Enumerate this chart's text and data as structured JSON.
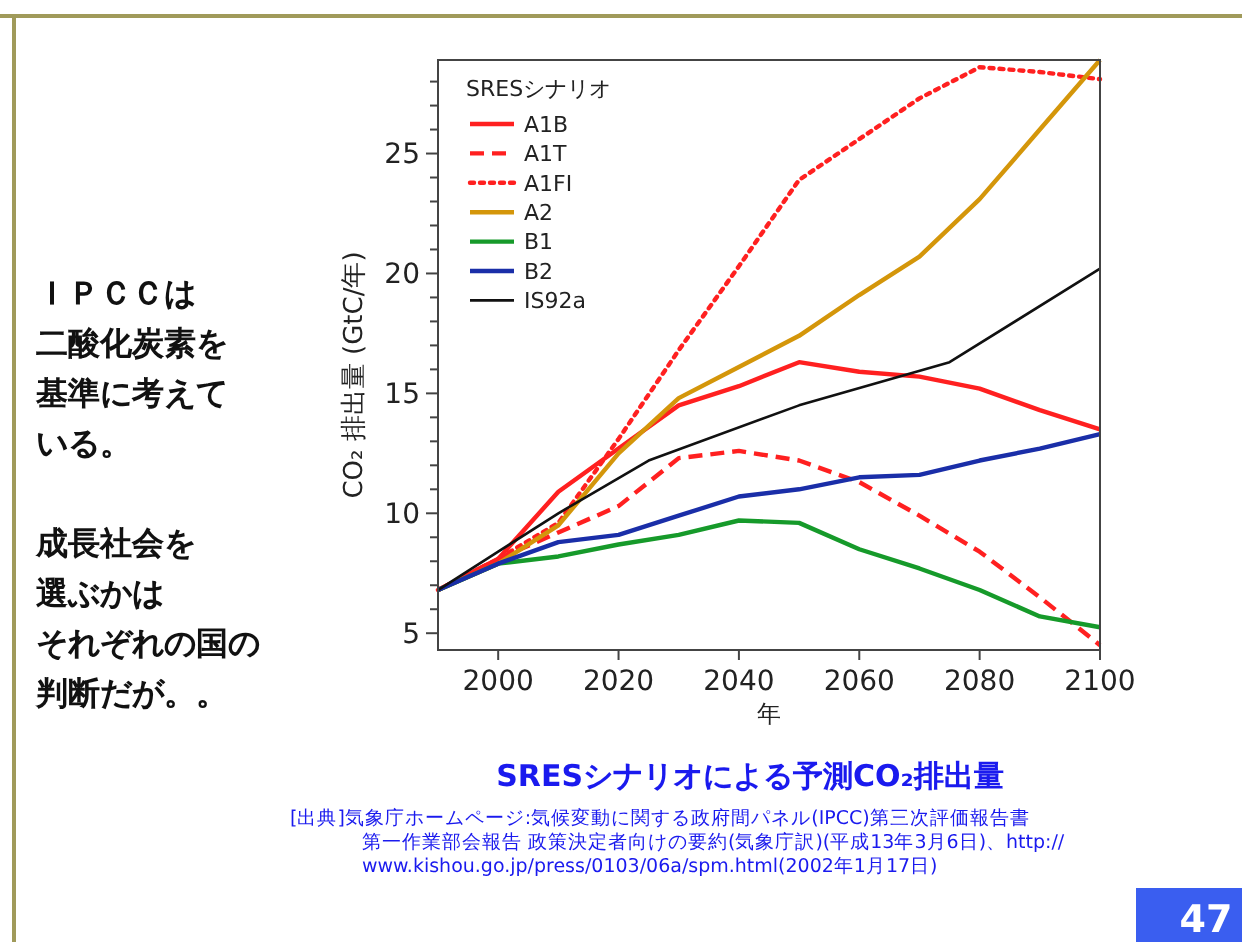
{
  "chart_data": {
    "type": "line",
    "title": "SRESシナリオによる予測CO₂排出量",
    "xlabel": "年",
    "ylabel": "CO₂ 排出量 (GtC/年)",
    "legend_title": "SRESシナリオ",
    "legend": "top left",
    "grid": false,
    "annotations": [
      "ＩＰＣＣは",
      "二酸化炭素を",
      "基準に考えて",
      "いる。",
      "成長社会を",
      "選ぶかは",
      "それぞれの国の",
      "判断だが。。",
      "[出典]気象庁ホームページ:気候変動に関する政府間パネル(IPCC)第三次評価報告書",
      "第一作業部会報告 政策決定者向けの要約(気象庁訳)(平成13年3月6日)、http://",
      "www.kishou.go.jp/press/0103/06a/spm.html(2002年1月17日)",
      "47"
    ],
    "xlim": [
      1990,
      2100
    ],
    "xticks": [
      2000,
      2020,
      2040,
      2060,
      2080,
      2100
    ],
    "ylim": [
      4.3,
      28.9
    ],
    "yticks": [
      5,
      {
        "value": 6,
        "label": null
      },
      {
        "value": 7,
        "label": null
      },
      {
        "value": 8,
        "label": null
      },
      {
        "value": 9,
        "label": null
      },
      10,
      {
        "value": 11,
        "label": null
      },
      {
        "value": 12,
        "label": null
      },
      {
        "value": 13,
        "label": null
      },
      {
        "value": 14,
        "label": null
      },
      15,
      {
        "value": 16,
        "label": null
      },
      {
        "value": 17,
        "label": null
      },
      {
        "value": 18,
        "label": null
      },
      {
        "value": 19,
        "label": null
      },
      20,
      {
        "value": 21,
        "label": null
      },
      {
        "value": 22,
        "label": null
      },
      {
        "value": 23,
        "label": null
      },
      {
        "value": 24,
        "label": null
      },
      25,
      {
        "value": 26,
        "label": null
      },
      {
        "value": 27,
        "label": null
      },
      {
        "value": 28,
        "label": null
      }
    ],
    "x": [
      1990,
      2000,
      2010,
      2020,
      2030,
      2040,
      2050,
      2060,
      2070,
      2080,
      2090,
      2100
    ],
    "series": [
      {
        "name": "A1B",
        "color": "#ff2020",
        "line_style": "solid",
        "values": [
          6.8,
          8.1,
          10.9,
          12.7,
          14.5,
          15.3,
          16.3,
          15.9,
          15.7,
          15.2,
          14.3,
          13.5
        ]
      },
      {
        "name": "A1T",
        "color": "#ff2020",
        "line_style": "dashed",
        "values": [
          6.8,
          8.1,
          9.2,
          10.3,
          12.3,
          12.6,
          12.2,
          11.3,
          9.9,
          8.4,
          6.5,
          4.5
        ]
      },
      {
        "name": "A1FI",
        "color": "#ff2020",
        "line_style": "dotted",
        "values": [
          6.8,
          8.1,
          9.6,
          13.1,
          16.8,
          20.3,
          23.9,
          25.6,
          27.3,
          28.6,
          28.4,
          28.1
        ]
      },
      {
        "name": "A2",
        "color": "#d4960a",
        "line_style": "solid",
        "values": [
          6.8,
          7.9,
          9.5,
          12.5,
          14.8,
          16.1,
          17.4,
          19.1,
          20.7,
          23.1,
          26.0,
          28.9
        ]
      },
      {
        "name": "B1",
        "color": "#169a2a",
        "line_style": "solid",
        "values": [
          6.8,
          7.9,
          8.2,
          8.7,
          9.1,
          9.7,
          9.6,
          8.5,
          7.7,
          6.8,
          5.7,
          5.25
        ]
      },
      {
        "name": "B2",
        "color": "#1a2ea8",
        "line_style": "solid",
        "values": [
          6.8,
          7.9,
          8.8,
          9.1,
          9.9,
          10.7,
          11.0,
          11.5,
          11.6,
          12.2,
          12.7,
          13.3
        ]
      },
      {
        "name": "IS92a",
        "color": "#111111",
        "line_style": "solid",
        "x": [
          1990,
          2000,
          2010,
          2025,
          2050,
          2075,
          2100
        ],
        "values": [
          6.8,
          8.4,
          10.0,
          12.2,
          14.5,
          16.3,
          20.2
        ]
      }
    ]
  }
}
